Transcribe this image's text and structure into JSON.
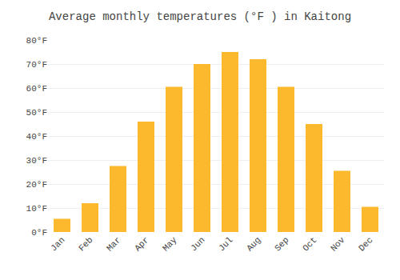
{
  "chart_data": {
    "type": "bar",
    "title": "Average monthly temperatures (°F ) in Kaitong",
    "categories": [
      "Jan",
      "Feb",
      "Mar",
      "Apr",
      "May",
      "Jun",
      "Jul",
      "Aug",
      "Sep",
      "Oct",
      "Nov",
      "Dec"
    ],
    "values": [
      5.5,
      12,
      27.5,
      46,
      60.5,
      70,
      75,
      72,
      60.5,
      45,
      25.5,
      10.5
    ],
    "color": "#FDB92E",
    "ylim": [
      0,
      80
    ],
    "yticks": [
      {
        "value": 0,
        "label": "0°F"
      },
      {
        "value": 10,
        "label": "10°F"
      },
      {
        "value": 20,
        "label": "20°F"
      },
      {
        "value": 30,
        "label": "30°F"
      },
      {
        "value": 40,
        "label": "40°F"
      },
      {
        "value": 50,
        "label": "50°F"
      },
      {
        "value": 60,
        "label": "60°F"
      },
      {
        "value": 70,
        "label": "70°F"
      },
      {
        "value": 80,
        "label": "80°F"
      }
    ],
    "grid": true
  }
}
